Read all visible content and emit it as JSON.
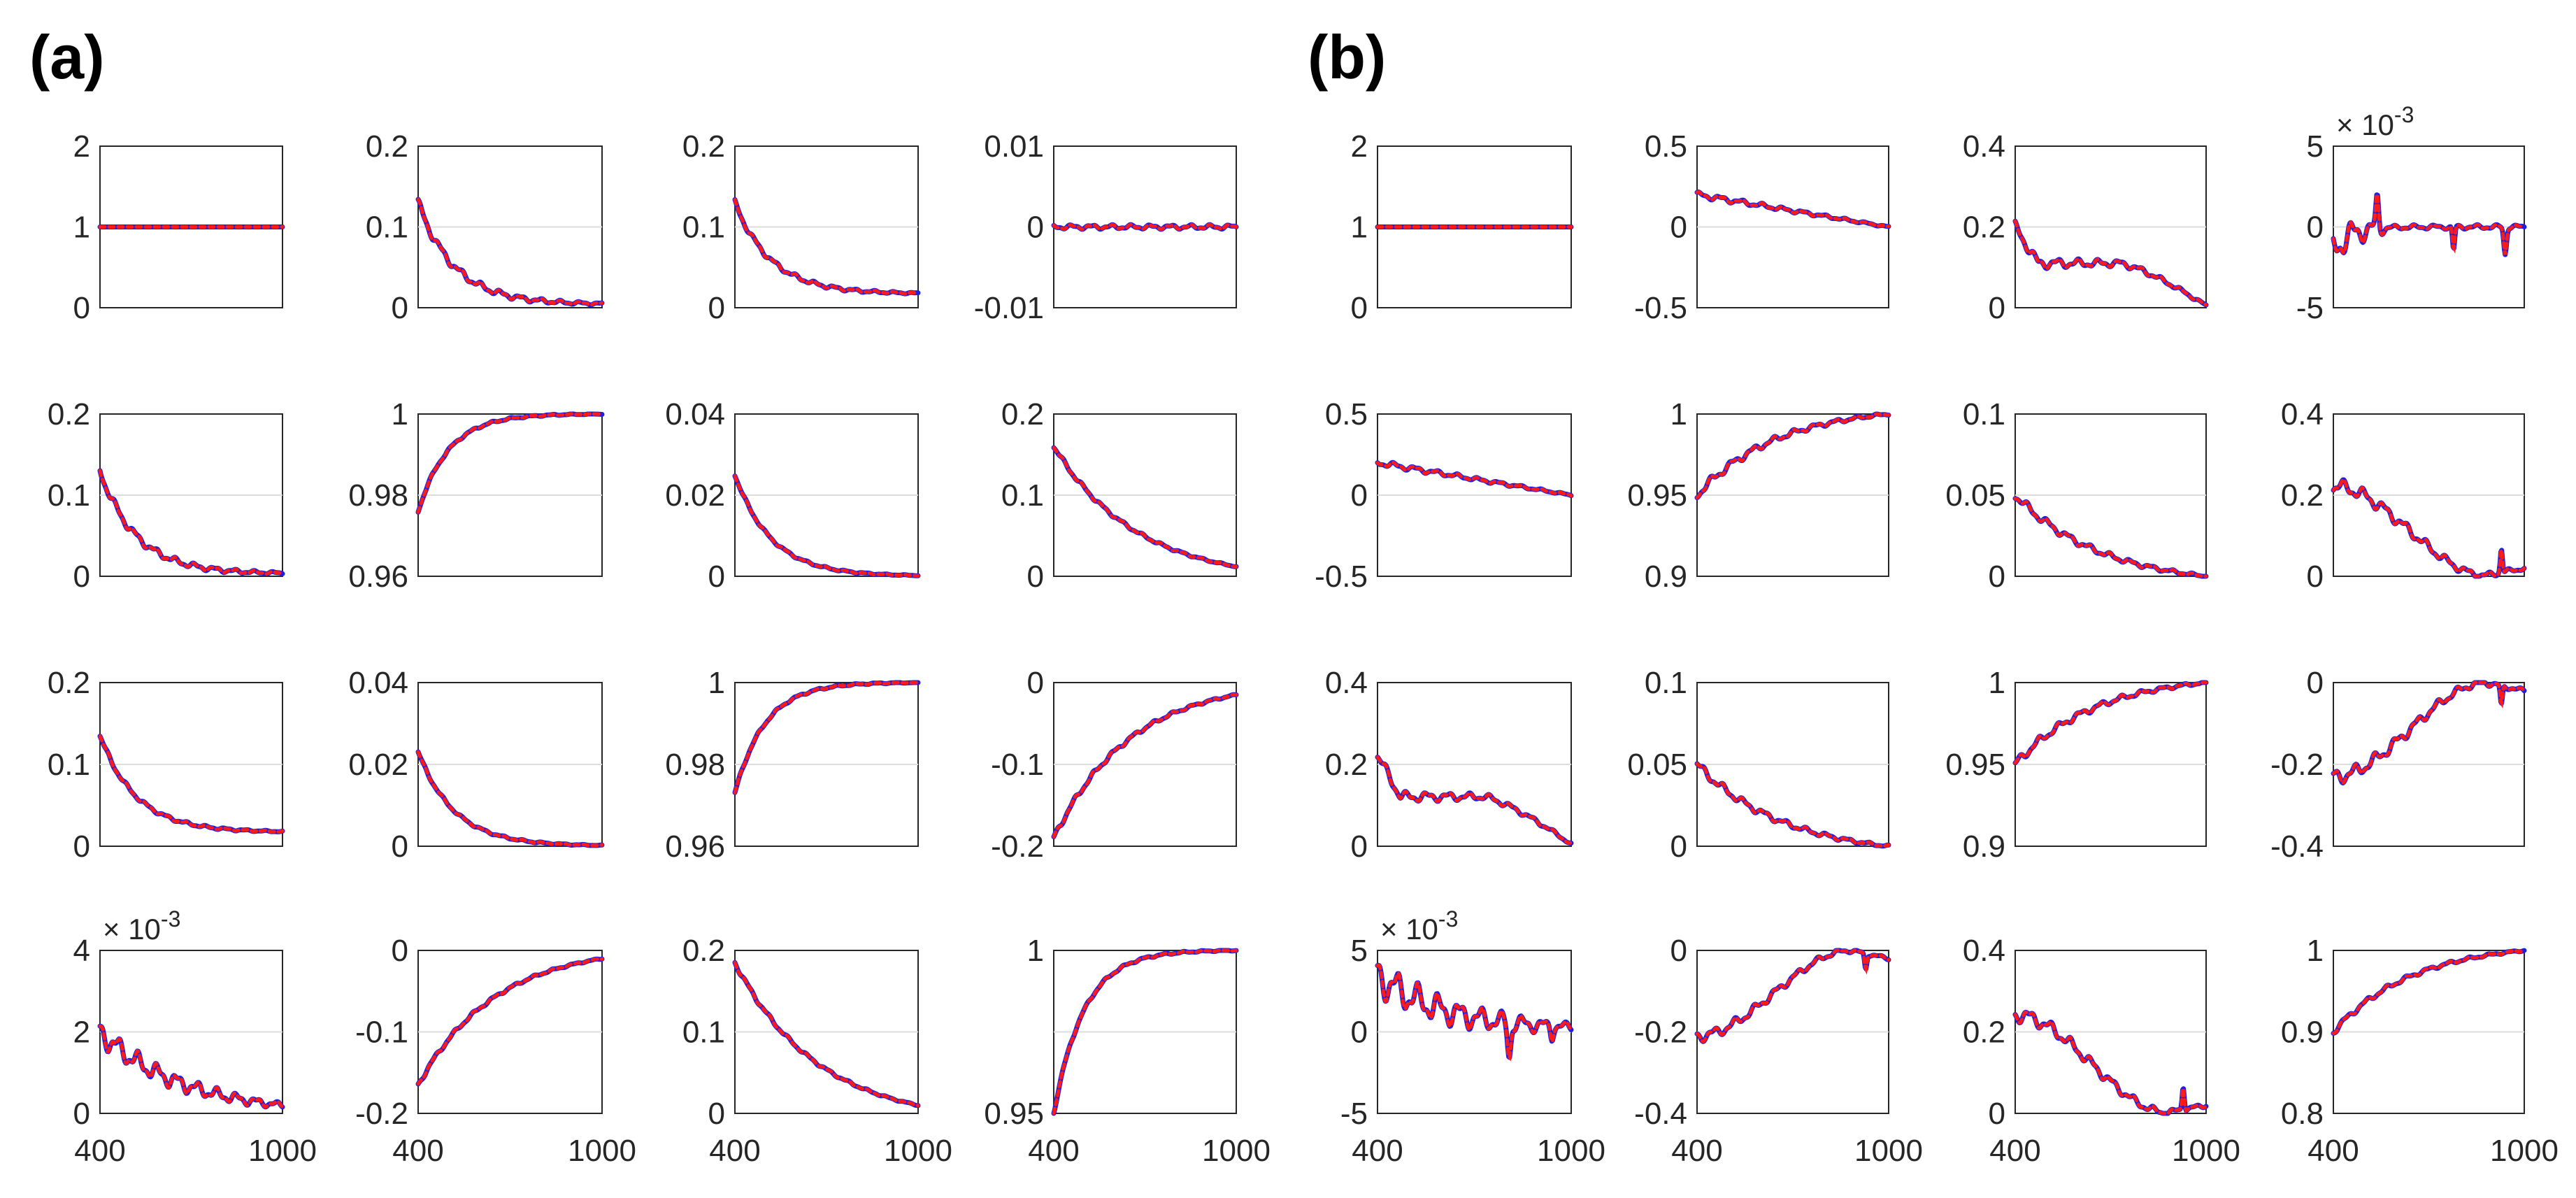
{
  "colors": {
    "blue": "#1f1fe0",
    "red": "#ff1a1a",
    "axis": "#262626",
    "grid": "#dddddd"
  },
  "legend": [
    "blue solid",
    "red dotted"
  ],
  "chart_data": [
    {
      "panel": "(a)",
      "type": "line",
      "x": [
        400,
        1000
      ],
      "xticks": [
        "400",
        "1000"
      ],
      "subplots": [
        {
          "row": 0,
          "col": 0,
          "ylim": [
            0,
            2
          ],
          "yticks": [
            "0",
            "1",
            "2"
          ],
          "exp": "",
          "shape": "flat",
          "start": 1,
          "end": 1,
          "wiggle": 0
        },
        {
          "row": 0,
          "col": 1,
          "ylim": [
            0,
            0.2
          ],
          "yticks": [
            "0",
            "0.1",
            "0.2"
          ],
          "exp": "",
          "shape": "decay",
          "start": 0.13,
          "end": 0.005,
          "wiggle": 0.006
        },
        {
          "row": 0,
          "col": 2,
          "ylim": [
            0,
            0.2
          ],
          "yticks": [
            "0",
            "0.1",
            "0.2"
          ],
          "exp": "",
          "shape": "decay",
          "start": 0.13,
          "end": 0.018,
          "wiggle": 0.004
        },
        {
          "row": 0,
          "col": 3,
          "ylim": [
            -0.01,
            0.01
          ],
          "yticks": [
            "-0.01",
            "0",
            "0.01"
          ],
          "exp": "",
          "shape": "flat",
          "start": 0,
          "end": 0,
          "wiggle": 0.0003
        },
        {
          "row": 1,
          "col": 0,
          "ylim": [
            0,
            0.2
          ],
          "yticks": [
            "0",
            "0.1",
            "0.2"
          ],
          "exp": "",
          "shape": "decay",
          "start": 0.13,
          "end": 0.004,
          "wiggle": 0.006
        },
        {
          "row": 1,
          "col": 1,
          "ylim": [
            0.96,
            1
          ],
          "yticks": [
            "0.96",
            "0.98",
            "1"
          ],
          "exp": "",
          "shape": "rise",
          "start": 0.976,
          "end": 1,
          "wiggle": 0.0004
        },
        {
          "row": 1,
          "col": 2,
          "ylim": [
            0,
            0.04
          ],
          "yticks": [
            "0",
            "0.02",
            "0.04"
          ],
          "exp": "",
          "shape": "decay",
          "start": 0.025,
          "end": 0.0002,
          "wiggle": 0.0004
        },
        {
          "row": 1,
          "col": 3,
          "ylim": [
            0,
            0.2
          ],
          "yticks": [
            "0",
            "0.1",
            "0.2"
          ],
          "exp": "",
          "shape": "slowdecay",
          "start": 0.16,
          "end": 0.012,
          "wiggle": 0.003
        },
        {
          "row": 2,
          "col": 0,
          "ylim": [
            0,
            0.2
          ],
          "yticks": [
            "0",
            "0.1",
            "0.2"
          ],
          "exp": "",
          "shape": "decay",
          "start": 0.135,
          "end": 0.018,
          "wiggle": 0.003
        },
        {
          "row": 2,
          "col": 1,
          "ylim": [
            0,
            0.04
          ],
          "yticks": [
            "0",
            "0.02",
            "0.04"
          ],
          "exp": "",
          "shape": "decay",
          "start": 0.023,
          "end": 0.0002,
          "wiggle": 0.0004
        },
        {
          "row": 2,
          "col": 2,
          "ylim": [
            0.96,
            1
          ],
          "yticks": [
            "0.96",
            "0.98",
            "1"
          ],
          "exp": "",
          "shape": "rise",
          "start": 0.973,
          "end": 1,
          "wiggle": 0.0004
        },
        {
          "row": 2,
          "col": 3,
          "ylim": [
            -0.2,
            0
          ],
          "yticks": [
            "-0.2",
            "-0.1",
            "0"
          ],
          "exp": "",
          "shape": "slowrise",
          "start": -0.19,
          "end": -0.015,
          "wiggle": 0.004
        },
        {
          "row": 3,
          "col": 0,
          "ylim": [
            0,
            4
          ],
          "yticks": [
            "0",
            "2",
            "4"
          ],
          "exp": "10^-3",
          "shape": "noisydecay",
          "start": 2.0,
          "end": 0.2,
          "wiggle": 0.25
        },
        {
          "row": 3,
          "col": 1,
          "ylim": [
            -0.2,
            0
          ],
          "yticks": [
            "-0.2",
            "-0.1",
            "0"
          ],
          "exp": "",
          "shape": "slowrise",
          "start": -0.165,
          "end": -0.01,
          "wiggle": 0.003
        },
        {
          "row": 3,
          "col": 2,
          "ylim": [
            0,
            0.2
          ],
          "yticks": [
            "0",
            "0.1",
            "0.2"
          ],
          "exp": "",
          "shape": "slowdecay",
          "start": 0.185,
          "end": 0.01,
          "wiggle": 0.003
        },
        {
          "row": 3,
          "col": 3,
          "ylim": [
            0.95,
            1
          ],
          "yticks": [
            "0.95",
            "",
            "1"
          ],
          "exp": "",
          "shape": "rise",
          "start": 0.95,
          "end": 1,
          "wiggle": 0.0006
        }
      ]
    },
    {
      "panel": "(b)",
      "type": "line",
      "x": [
        400,
        1000
      ],
      "xticks": [
        "400",
        "1000"
      ],
      "subplots": [
        {
          "row": 0,
          "col": 0,
          "ylim": [
            0,
            2
          ],
          "yticks": [
            "0",
            "1",
            "2"
          ],
          "exp": "",
          "shape": "flat",
          "start": 1,
          "end": 1,
          "wiggle": 0
        },
        {
          "row": 0,
          "col": 1,
          "ylim": [
            -0.5,
            0.5
          ],
          "yticks": [
            "-0.5",
            "0",
            "0.5"
          ],
          "exp": "",
          "shape": "linear",
          "start": 0.2,
          "end": 0,
          "wiggle": 0.02
        },
        {
          "row": 0,
          "col": 2,
          "ylim": [
            0,
            0.4
          ],
          "yticks": [
            "0",
            "0.2",
            "0.4"
          ],
          "exp": "",
          "shape": "hump",
          "start": 0.2,
          "end": 0.005,
          "wiggle": 0.015
        },
        {
          "row": 0,
          "col": 3,
          "ylim": [
            -5,
            5
          ],
          "yticks": [
            "-5",
            "0",
            "5"
          ],
          "exp": "10^-3",
          "shape": "spiky",
          "start": -1.5,
          "end": 0,
          "wiggle": 1.2
        },
        {
          "row": 1,
          "col": 0,
          "ylim": [
            -0.5,
            0.5
          ],
          "yticks": [
            "-0.5",
            "0",
            "0.5"
          ],
          "exp": "",
          "shape": "linear",
          "start": 0.2,
          "end": 0,
          "wiggle": 0.02
        },
        {
          "row": 1,
          "col": 1,
          "ylim": [
            0.9,
            1
          ],
          "yticks": [
            "0.9",
            "0.95",
            "1"
          ],
          "exp": "",
          "shape": "slowrise",
          "start": 0.95,
          "end": 1,
          "wiggle": 0.003
        },
        {
          "row": 1,
          "col": 2,
          "ylim": [
            0,
            0.1
          ],
          "yticks": [
            "0",
            "0.05",
            "0.1"
          ],
          "exp": "",
          "shape": "slowdecay",
          "start": 0.05,
          "end": 0,
          "wiggle": 0.003
        },
        {
          "row": 1,
          "col": 3,
          "ylim": [
            0,
            0.4
          ],
          "yticks": [
            "0",
            "0.2",
            "0.4"
          ],
          "exp": "",
          "shape": "bowl",
          "start": 0.22,
          "end": 0.02,
          "wiggle": 0.02
        },
        {
          "row": 2,
          "col": 0,
          "ylim": [
            0,
            0.4
          ],
          "yticks": [
            "0",
            "0.2",
            "0.4"
          ],
          "exp": "",
          "shape": "hump",
          "start": 0.22,
          "end": 0.005,
          "wiggle": 0.015
        },
        {
          "row": 2,
          "col": 1,
          "ylim": [
            0,
            0.1
          ],
          "yticks": [
            "0",
            "0.05",
            "0.1"
          ],
          "exp": "",
          "shape": "slowdecay",
          "start": 0.05,
          "end": 0,
          "wiggle": 0.003
        },
        {
          "row": 2,
          "col": 2,
          "ylim": [
            0.9,
            1
          ],
          "yticks": [
            "0.9",
            "0.95",
            "1"
          ],
          "exp": "",
          "shape": "slowrise",
          "start": 0.95,
          "end": 1,
          "wiggle": 0.003
        },
        {
          "row": 2,
          "col": 3,
          "ylim": [
            -0.4,
            0
          ],
          "yticks": [
            "-0.4",
            "-0.2",
            "0"
          ],
          "exp": "",
          "shape": "dip",
          "start": -0.23,
          "end": -0.02,
          "wiggle": 0.02
        },
        {
          "row": 3,
          "col": 0,
          "ylim": [
            -5,
            5
          ],
          "yticks": [
            "-5",
            "0",
            "5"
          ],
          "exp": "10^-3",
          "shape": "spikydecay",
          "start": 3.5,
          "end": 0.3,
          "wiggle": 1.0
        },
        {
          "row": 3,
          "col": 1,
          "ylim": [
            -0.4,
            0
          ],
          "yticks": [
            "-0.4",
            "-0.2",
            "0"
          ],
          "exp": "",
          "shape": "dip",
          "start": -0.21,
          "end": -0.02,
          "wiggle": 0.015
        },
        {
          "row": 3,
          "col": 2,
          "ylim": [
            0,
            0.4
          ],
          "yticks": [
            "0",
            "0.2",
            "0.4"
          ],
          "exp": "",
          "shape": "bowl",
          "start": 0.24,
          "end": 0.02,
          "wiggle": 0.02
        },
        {
          "row": 3,
          "col": 3,
          "ylim": [
            0.8,
            1
          ],
          "yticks": [
            "0.8",
            "0.9",
            "1"
          ],
          "exp": "",
          "shape": "slowrise",
          "start": 0.9,
          "end": 1,
          "wiggle": 0.004
        }
      ]
    }
  ]
}
